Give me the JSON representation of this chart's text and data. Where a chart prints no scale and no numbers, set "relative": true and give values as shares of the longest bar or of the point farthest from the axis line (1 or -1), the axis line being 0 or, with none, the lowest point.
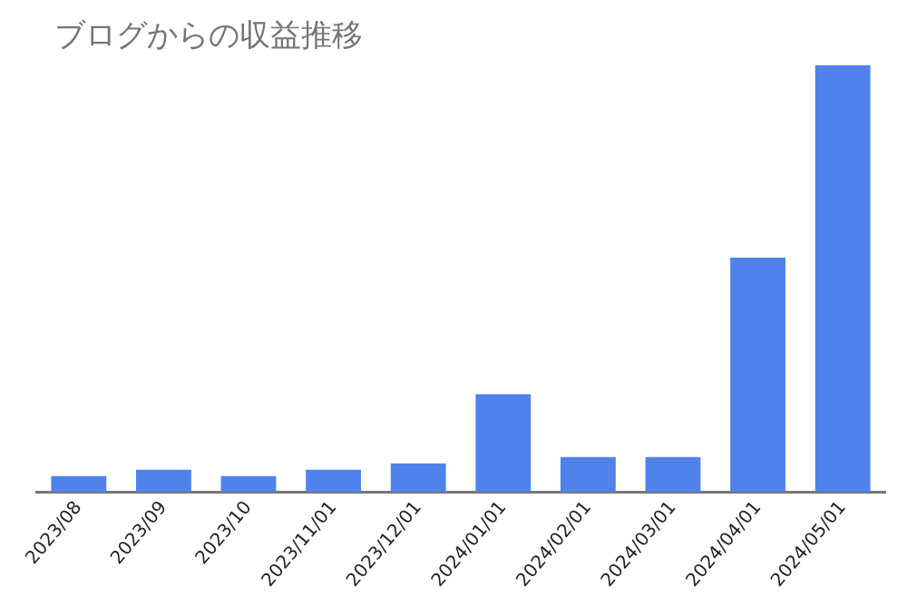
{
  "chart_data": {
    "type": "bar",
    "title": "ブログからの収益推移",
    "categories": [
      "2023/08",
      "2023/09",
      "2023/10",
      "2023/11/01",
      "2023/12/01",
      "2024/01/01",
      "2024/02/01",
      "2024/03/01",
      "2024/04/01",
      "2024/05/01"
    ],
    "values": [
      0.037,
      0.052,
      0.037,
      0.052,
      0.067,
      0.229,
      0.082,
      0.082,
      0.549,
      1
    ],
    "color": "#4f83eb",
    "relative": true
  }
}
